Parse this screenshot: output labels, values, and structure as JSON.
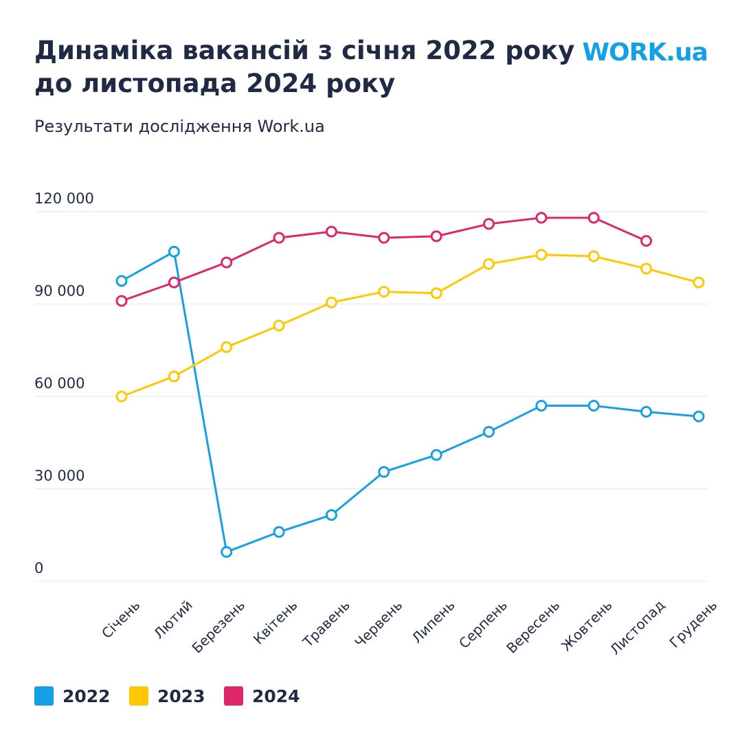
{
  "chart_data": {
    "type": "line",
    "title": "Динаміка вакансій з січня 2022 року до листопада 2024 року",
    "subtitle": "Результати дослідження Work.ua",
    "logo": "WORK.ua",
    "categories": [
      "Січень",
      "Лютий",
      "Березень",
      "Квітень",
      "Травень",
      "Червень",
      "Липень",
      "Серпень",
      "Вересень",
      "Жовтень",
      "Листопад",
      "Грудень"
    ],
    "series": [
      {
        "name": "2022",
        "color": "#14a0e6",
        "values": [
          97500,
          107000,
          9500,
          16000,
          21500,
          35500,
          41000,
          48500,
          57000,
          57000,
          55000,
          53500
        ]
      },
      {
        "name": "2023",
        "color": "#ffc800",
        "values": [
          60000,
          66500,
          76000,
          83000,
          90500,
          94000,
          93500,
          103000,
          106000,
          105500,
          101500,
          97000
        ]
      },
      {
        "name": "2024",
        "color": "#e0266a",
        "values": [
          91000,
          97000,
          103500,
          111500,
          113500,
          111500,
          112000,
          116000,
          118000,
          118000,
          110500,
          null
        ]
      }
    ],
    "ylim": [
      0,
      120000
    ],
    "yticks": [
      0,
      {
        "value": 30000,
        "label": "30 000"
      },
      {
        "value": 60000,
        "label": "60 000"
      },
      {
        "value": 90000,
        "label": "90 000"
      },
      {
        "value": 120000,
        "label": "120 000"
      }
    ],
    "grid": true
  }
}
